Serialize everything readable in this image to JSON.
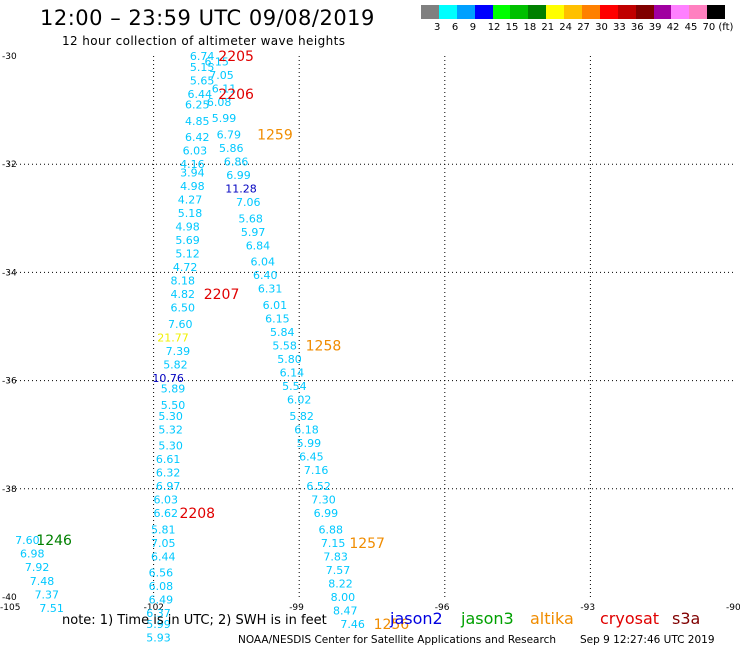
{
  "title": "12:00 – 23:59 UTC 09/08/2019",
  "subtitle": "12 hour collection of altimeter wave heights",
  "legend": {
    "unit": "(ft)",
    "swatches": [
      "#808080",
      "#00ffff",
      "#00a0ff",
      "#0000ff",
      "#00ff00",
      "#00c000",
      "#008000",
      "#ffff00",
      "#ffc000",
      "#ff8000",
      "#ff0000",
      "#c00000",
      "#800000",
      "#a000a0",
      "#ff80ff",
      "#ff80c0",
      "#000000"
    ],
    "values": [
      "3",
      "6",
      "9",
      "12",
      "15",
      "18",
      "21",
      "24",
      "27",
      "30",
      "33",
      "36",
      "39",
      "42",
      "45",
      "70"
    ]
  },
  "axes": {
    "lat_ticks": [
      "-30",
      "-32",
      "-34",
      "-36",
      "-38",
      "-40"
    ],
    "lon_ticks": [
      "-105",
      "-102",
      "-99",
      "-96",
      "-93",
      "-90"
    ]
  },
  "colors": {
    "cyan": "#00c8ff",
    "blue": "#0000c0",
    "yellow": "#f0f000",
    "red": "#e00000",
    "orange": "#f08c00",
    "green": "#008000"
  },
  "observations": [
    {
      "v": "6.74",
      "lon": -101.0,
      "lat": -30.0,
      "c": "cyan"
    },
    {
      "v": "6.15",
      "lon": -100.7,
      "lat": -30.1,
      "c": "cyan"
    },
    {
      "v": "5.15",
      "lon": -101.0,
      "lat": -30.2,
      "c": "cyan"
    },
    {
      "v": "7.05",
      "lon": -100.6,
      "lat": -30.35,
      "c": "cyan"
    },
    {
      "v": "5.65",
      "lon": -101.0,
      "lat": -30.45,
      "c": "cyan"
    },
    {
      "v": "6.11",
      "lon": -100.55,
      "lat": -30.6,
      "c": "cyan"
    },
    {
      "v": "6.44",
      "lon": -101.05,
      "lat": -30.7,
      "c": "cyan"
    },
    {
      "v": "6.08",
      "lon": -100.65,
      "lat": -30.85,
      "c": "cyan"
    },
    {
      "v": "6.25",
      "lon": -101.1,
      "lat": -30.9,
      "c": "cyan"
    },
    {
      "v": "5.99",
      "lon": -100.55,
      "lat": -31.15,
      "c": "cyan"
    },
    {
      "v": "4.85",
      "lon": -101.1,
      "lat": -31.2,
      "c": "cyan"
    },
    {
      "v": "6.79",
      "lon": -100.45,
      "lat": -31.45,
      "c": "cyan"
    },
    {
      "v": "6.42",
      "lon": -101.1,
      "lat": -31.5,
      "c": "cyan"
    },
    {
      "v": "5.86",
      "lon": -100.4,
      "lat": -31.7,
      "c": "cyan"
    },
    {
      "v": "6.03",
      "lon": -101.15,
      "lat": -31.75,
      "c": "cyan"
    },
    {
      "v": "6.86",
      "lon": -100.3,
      "lat": -31.95,
      "c": "cyan"
    },
    {
      "v": "4.16",
      "lon": -101.2,
      "lat": -32.0,
      "c": "cyan"
    },
    {
      "v": "6.99",
      "lon": -100.25,
      "lat": -32.2,
      "c": "cyan"
    },
    {
      "v": "3.94",
      "lon": -101.2,
      "lat": -32.15,
      "c": "cyan"
    },
    {
      "v": "11.28",
      "lon": -100.2,
      "lat": -32.45,
      "c": "blue"
    },
    {
      "v": "4.98",
      "lon": -101.2,
      "lat": -32.4,
      "c": "cyan"
    },
    {
      "v": "7.06",
      "lon": -100.05,
      "lat": -32.7,
      "c": "cyan"
    },
    {
      "v": "4.27",
      "lon": -101.25,
      "lat": -32.65,
      "c": "cyan"
    },
    {
      "v": "5.68",
      "lon": -100.0,
      "lat": -33.0,
      "c": "cyan"
    },
    {
      "v": "5.18",
      "lon": -101.25,
      "lat": -32.9,
      "c": "cyan"
    },
    {
      "v": "5.97",
      "lon": -99.95,
      "lat": -33.25,
      "c": "cyan"
    },
    {
      "v": "4.98",
      "lon": -101.3,
      "lat": -33.15,
      "c": "cyan"
    },
    {
      "v": "6.84",
      "lon": -99.85,
      "lat": -33.5,
      "c": "cyan"
    },
    {
      "v": "5.69",
      "lon": -101.3,
      "lat": -33.4,
      "c": "cyan"
    },
    {
      "v": "6.04",
      "lon": -99.75,
      "lat": -33.8,
      "c": "cyan"
    },
    {
      "v": "5.12",
      "lon": -101.3,
      "lat": -33.65,
      "c": "cyan"
    },
    {
      "v": "6.40",
      "lon": -99.7,
      "lat": -34.05,
      "c": "cyan"
    },
    {
      "v": "4.72",
      "lon": -101.35,
      "lat": -33.9,
      "c": "cyan"
    },
    {
      "v": "6.31",
      "lon": -99.6,
      "lat": -34.3,
      "c": "cyan"
    },
    {
      "v": "8.18",
      "lon": -101.4,
      "lat": -34.15,
      "c": "cyan"
    },
    {
      "v": "4.82",
      "lon": -101.4,
      "lat": -34.4,
      "c": "cyan"
    },
    {
      "v": "6.01",
      "lon": -99.5,
      "lat": -34.6,
      "c": "cyan"
    },
    {
      "v": "6.50",
      "lon": -101.4,
      "lat": -34.65,
      "c": "cyan"
    },
    {
      "v": "6.15",
      "lon": -99.45,
      "lat": -34.85,
      "c": "cyan"
    },
    {
      "v": "7.60",
      "lon": -101.45,
      "lat": -34.95,
      "c": "cyan"
    },
    {
      "v": "5.84",
      "lon": -99.35,
      "lat": -35.1,
      "c": "cyan"
    },
    {
      "v": "21.77",
      "lon": -101.6,
      "lat": -35.2,
      "c": "yellow"
    },
    {
      "v": "5.58",
      "lon": -99.3,
      "lat": -35.35,
      "c": "cyan"
    },
    {
      "v": "7.39",
      "lon": -101.5,
      "lat": -35.45,
      "c": "cyan"
    },
    {
      "v": "5.80",
      "lon": -99.2,
      "lat": -35.6,
      "c": "cyan"
    },
    {
      "v": "5.82",
      "lon": -101.55,
      "lat": -35.7,
      "c": "cyan"
    },
    {
      "v": "6.14",
      "lon": -99.15,
      "lat": -35.85,
      "c": "cyan"
    },
    {
      "v": "10.76",
      "lon": -101.7,
      "lat": -35.95,
      "c": "blue"
    },
    {
      "v": "5.54",
      "lon": -99.1,
      "lat": -36.1,
      "c": "cyan"
    },
    {
      "v": "5.89",
      "lon": -101.6,
      "lat": -36.15,
      "c": "cyan"
    },
    {
      "v": "6.02",
      "lon": -99.0,
      "lat": -36.35,
      "c": "cyan"
    },
    {
      "v": "5.50",
      "lon": -101.6,
      "lat": -36.45,
      "c": "cyan"
    },
    {
      "v": "5.82",
      "lon": -98.95,
      "lat": -36.65,
      "c": "cyan"
    },
    {
      "v": "5.30",
      "lon": -101.65,
      "lat": -36.65,
      "c": "cyan"
    },
    {
      "v": "6.18",
      "lon": -98.85,
      "lat": -36.9,
      "c": "cyan"
    },
    {
      "v": "5.32",
      "lon": -101.65,
      "lat": -36.9,
      "c": "cyan"
    },
    {
      "v": "5.99",
      "lon": -98.8,
      "lat": -37.15,
      "c": "cyan"
    },
    {
      "v": "5.30",
      "lon": -101.65,
      "lat": -37.2,
      "c": "cyan"
    },
    {
      "v": "6.45",
      "lon": -98.75,
      "lat": -37.4,
      "c": "cyan"
    },
    {
      "v": "6.61",
      "lon": -101.7,
      "lat": -37.45,
      "c": "cyan"
    },
    {
      "v": "7.16",
      "lon": -98.65,
      "lat": -37.65,
      "c": "cyan"
    },
    {
      "v": "6.32",
      "lon": -101.7,
      "lat": -37.7,
      "c": "cyan"
    },
    {
      "v": "6.52",
      "lon": -98.6,
      "lat": -37.95,
      "c": "cyan"
    },
    {
      "v": "6.97",
      "lon": -101.7,
      "lat": -37.95,
      "c": "cyan"
    },
    {
      "v": "7.30",
      "lon": -98.5,
      "lat": -38.2,
      "c": "cyan"
    },
    {
      "v": "6.03",
      "lon": -101.75,
      "lat": -38.2,
      "c": "cyan"
    },
    {
      "v": "6.99",
      "lon": -98.45,
      "lat": -38.45,
      "c": "cyan"
    },
    {
      "v": "6.62",
      "lon": -101.75,
      "lat": -38.45,
      "c": "cyan"
    },
    {
      "v": "5.81",
      "lon": -101.8,
      "lat": -38.75,
      "c": "cyan"
    },
    {
      "v": "6.88",
      "lon": -98.35,
      "lat": -38.75,
      "c": "cyan"
    },
    {
      "v": "7.05",
      "lon": -101.8,
      "lat": -39.0,
      "c": "cyan"
    },
    {
      "v": "7.15",
      "lon": -98.3,
      "lat": -39.0,
      "c": "cyan"
    },
    {
      "v": "6.44",
      "lon": -101.8,
      "lat": -39.25,
      "c": "cyan"
    },
    {
      "v": "7.83",
      "lon": -98.25,
      "lat": -39.25,
      "c": "cyan"
    },
    {
      "v": "6.56",
      "lon": -101.85,
      "lat": -39.55,
      "c": "cyan"
    },
    {
      "v": "7.57",
      "lon": -98.2,
      "lat": -39.5,
      "c": "cyan"
    },
    {
      "v": "6.08",
      "lon": -101.85,
      "lat": -39.8,
      "c": "cyan"
    },
    {
      "v": "8.22",
      "lon": -98.15,
      "lat": -39.75,
      "c": "cyan"
    },
    {
      "v": "6.49",
      "lon": -101.85,
      "lat": -40.05,
      "c": "cyan"
    },
    {
      "v": "8.00",
      "lon": -98.1,
      "lat": -40.0,
      "c": "cyan"
    },
    {
      "v": "6.37",
      "lon": -101.9,
      "lat": -40.3,
      "c": "cyan"
    },
    {
      "v": "8.47",
      "lon": -98.05,
      "lat": -40.25,
      "c": "cyan"
    },
    {
      "v": "5.99",
      "lon": -101.9,
      "lat": -40.5,
      "c": "cyan"
    },
    {
      "v": "7.46",
      "lon": -97.9,
      "lat": -40.5,
      "c": "cyan"
    },
    {
      "v": "5.93",
      "lon": -101.9,
      "lat": -40.75,
      "c": "cyan"
    },
    {
      "v": "7.60",
      "lon": -104.6,
      "lat": -38.95,
      "c": "cyan"
    },
    {
      "v": "6.98",
      "lon": -104.5,
      "lat": -39.2,
      "c": "cyan"
    },
    {
      "v": "7.92",
      "lon": -104.4,
      "lat": -39.45,
      "c": "cyan"
    },
    {
      "v": "7.48",
      "lon": -104.3,
      "lat": -39.7,
      "c": "cyan"
    },
    {
      "v": "7.37",
      "lon": -104.2,
      "lat": -39.95,
      "c": "cyan"
    },
    {
      "v": "7.51",
      "lon": -104.1,
      "lat": -40.2,
      "c": "cyan"
    }
  ],
  "pass_times": [
    {
      "t": "2205",
      "lon": -100.3,
      "lat": -30.0,
      "c": "red"
    },
    {
      "t": "2206",
      "lon": -100.3,
      "lat": -30.7,
      "c": "red"
    },
    {
      "t": "1259",
      "lon": -99.5,
      "lat": -31.45,
      "c": "orange"
    },
    {
      "t": "2207",
      "lon": -100.6,
      "lat": -34.4,
      "c": "red"
    },
    {
      "t": "1258",
      "lon": -98.5,
      "lat": -35.35,
      "c": "orange"
    },
    {
      "t": "2208",
      "lon": -101.1,
      "lat": -38.45,
      "c": "red"
    },
    {
      "t": "1257",
      "lon": -97.6,
      "lat": -39.0,
      "c": "orange"
    },
    {
      "t": "1256",
      "lon": -97.1,
      "lat": -40.5,
      "c": "orange"
    },
    {
      "t": "1246",
      "lon": -104.05,
      "lat": -38.95,
      "c": "green"
    }
  ],
  "note": "note: 1) Time is in UTC; 2) SWH is in feet",
  "missions": [
    {
      "name": "jason2",
      "color": "#0000e0"
    },
    {
      "name": "jason3",
      "color": "#00a000"
    },
    {
      "name": "altika",
      "color": "#f08c00"
    },
    {
      "name": "cryosat",
      "color": "#e00000"
    },
    {
      "name": "s3a",
      "color": "#800000"
    }
  ],
  "credit": "NOAA/NESDIS Center for Satellite Applications and Research",
  "timestamp": "Sep  9 12:27:46 UTC 2019"
}
